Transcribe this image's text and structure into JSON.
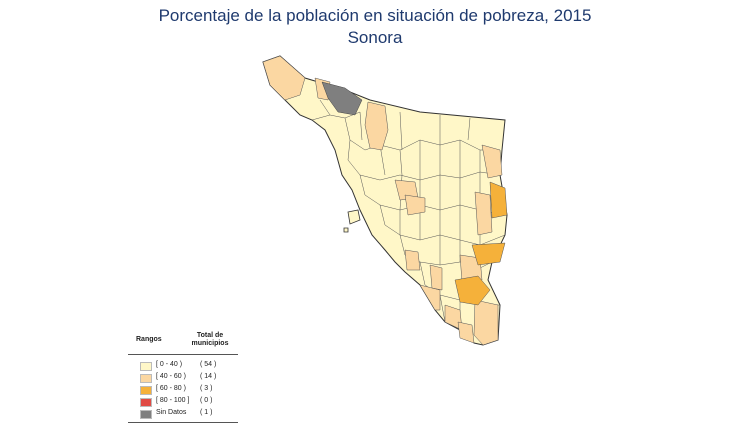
{
  "title": "Porcentaje de la población en situación de pobreza, 2015",
  "subtitle": "Sonora",
  "legend": {
    "header_ranges": "Rangos",
    "header_total": "Total de municipios",
    "items": [
      {
        "range": "[  0 - 40 )",
        "count": "( 54 )",
        "color": "#fff7c8"
      },
      {
        "range": "[ 40 - 60 )",
        "count": "( 14 )",
        "color": "#fbd7a2"
      },
      {
        "range": "[ 60 - 80 )",
        "count": "( 3 )",
        "color": "#f5b13a"
      },
      {
        "range": "[ 80 - 100 ]",
        "count": "( 0 )",
        "color": "#e04b45"
      },
      {
        "range": "Sin Datos",
        "count": "( 1 )",
        "color": "#7f7f7f"
      }
    ]
  },
  "map": {
    "region": "Sonora",
    "municipalities_by_class": {
      "0-40": 54,
      "40-60": 14,
      "60-80": 3,
      "80-100": 0,
      "sin_datos": 1
    }
  }
}
